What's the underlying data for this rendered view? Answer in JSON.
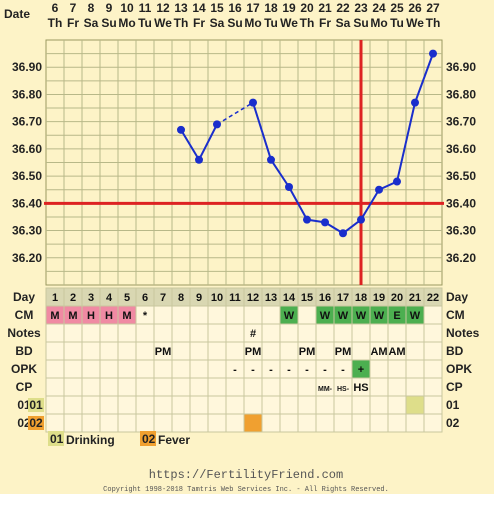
{
  "header": {
    "date_label": "Date",
    "dates": [
      "6",
      "7",
      "8",
      "9",
      "10",
      "11",
      "12",
      "13",
      "14",
      "15",
      "16",
      "17",
      "18",
      "19",
      "20",
      "21",
      "22",
      "23",
      "24",
      "25",
      "26",
      "27"
    ],
    "weekdays": [
      "Th",
      "Fr",
      "Sa",
      "Su",
      "Mo",
      "Tu",
      "We",
      "Th",
      "Fr",
      "Sa",
      "Su",
      "Mo",
      "Tu",
      "We",
      "Th",
      "Fr",
      "Sa",
      "Su",
      "Mo",
      "Tu",
      "We",
      "Th"
    ]
  },
  "chart_data": {
    "type": "line",
    "x": [
      1,
      2,
      3,
      4,
      5,
      6,
      7,
      8,
      9,
      10,
      11,
      12,
      13,
      14,
      15,
      16,
      17,
      18,
      19,
      20,
      21,
      22
    ],
    "xlabel": "Day",
    "ylim": [
      36.1,
      37.0
    ],
    "yticks": [
      "36.20",
      "36.30",
      "36.40",
      "36.50",
      "36.60",
      "36.70",
      "36.80",
      "36.90"
    ],
    "temps": [
      null,
      null,
      null,
      null,
      null,
      null,
      null,
      36.67,
      36.56,
      36.69,
      null,
      36.77,
      36.56,
      36.46,
      36.34,
      36.33,
      36.29,
      36.34,
      36.45,
      36.48,
      36.77,
      36.95
    ],
    "line_segments": [
      [
        8,
        9
      ],
      [
        9,
        10
      ],
      [
        12,
        13
      ],
      [
        13,
        14
      ],
      [
        14,
        15
      ],
      [
        15,
        16
      ],
      [
        16,
        17
      ],
      [
        17,
        18
      ],
      [
        18,
        19
      ],
      [
        19,
        20
      ],
      [
        20,
        21
      ],
      [
        21,
        22
      ]
    ],
    "dashed_segments": [
      [
        10,
        12
      ]
    ],
    "coverline": 36.4,
    "ovulation_day": 18,
    "grid": true,
    "line_color": "#1a2ecc",
    "reference_color": "#dd2222"
  },
  "rows": {
    "day": {
      "label": "Day",
      "cells": [
        "1",
        "2",
        "3",
        "4",
        "5",
        "6",
        "7",
        "8",
        "9",
        "10",
        "11",
        "12",
        "13",
        "14",
        "15",
        "16",
        "17",
        "18",
        "19",
        "20",
        "21",
        "22"
      ]
    },
    "cm": {
      "label": "CM",
      "cells": [
        "M",
        "M",
        "H",
        "H",
        "M",
        "*",
        "",
        "",
        "",
        "",
        "",
        "",
        "",
        "W",
        "",
        "W",
        "W",
        "W",
        "W",
        "E",
        "W",
        ""
      ]
    },
    "notes": {
      "label": "Notes",
      "cells": [
        "",
        "",
        "",
        "",
        "",
        "",
        "",
        "",
        "",
        "",
        "",
        "#",
        "",
        "",
        "",
        "",
        "",
        "",
        "",
        "",
        "",
        ""
      ]
    },
    "bd": {
      "label": "BD",
      "cells": [
        "",
        "",
        "",
        "",
        "",
        "",
        "PM",
        "",
        "",
        "",
        "",
        "PM",
        "",
        "",
        "PM",
        "",
        "PM",
        "",
        "AM",
        "AM",
        "",
        ""
      ]
    },
    "opk": {
      "label": "OPK",
      "cells": [
        "",
        "",
        "",
        "",
        "",
        "",
        "",
        "",
        "",
        "",
        "-",
        "-",
        "-",
        "-",
        "-",
        "-",
        "-",
        "+",
        "",
        "",
        "",
        ""
      ]
    },
    "cp": {
      "label": "CP",
      "cells": [
        "",
        "",
        "",
        "",
        "",
        "",
        "",
        "",
        "",
        "",
        "",
        "",
        "",
        "",
        "",
        "MM-",
        "HS-",
        "HS",
        "",
        "",
        "",
        ""
      ]
    },
    "custom1": {
      "label": "01",
      "cells": [
        "",
        "",
        "",
        "",
        "",
        "",
        "",
        "",
        "",
        "",
        "",
        "",
        "",
        "",
        "",
        "",
        "",
        "",
        "",
        "",
        "",
        ""
      ]
    },
    "custom2": {
      "label": "02",
      "cells": [
        "",
        "",
        "",
        "",
        "",
        "",
        "",
        "",
        "",
        "",
        "",
        "",
        "",
        "",
        "",
        "",
        "",
        "",
        "",
        "",
        "",
        ""
      ]
    }
  },
  "legend": {
    "item1_code": "01",
    "item1_label": "Drinking",
    "item2_code": "02",
    "item2_label": "Fever"
  },
  "footer": {
    "url": "https://FertilityFriend.com",
    "copyright": "Copyright 1998-2018 Tamtris Web Services Inc. - All Rights Reserved."
  },
  "colors": {
    "menstrual": "#f08aa3",
    "fertile_cm": "#4caf50",
    "opk_positive": "#4caf50",
    "custom1": "#dede8a",
    "custom2": "#f0a030"
  }
}
